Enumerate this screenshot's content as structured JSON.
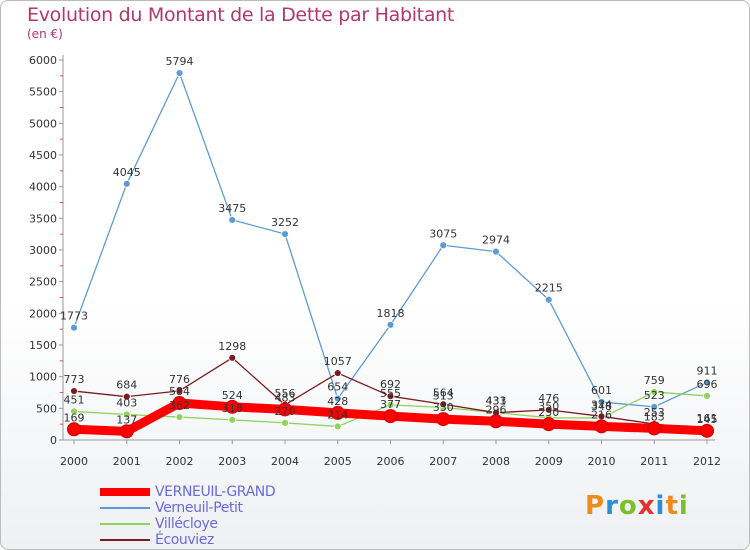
{
  "title": "Evolution du Montant de la Dette par Habitant",
  "subtitle": "(en €)",
  "logo": {
    "text": "Proxiti",
    "letter_colors": [
      "#f08a1c",
      "#2b8fd6",
      "#7cbf2a",
      "#e8302a",
      "#2b8fd6",
      "#f08a1c",
      "#7cbf2a"
    ]
  },
  "chart_data": {
    "type": "line",
    "x": [
      2000,
      2001,
      2002,
      2003,
      2004,
      2005,
      2006,
      2007,
      2008,
      2009,
      2010,
      2011,
      2012
    ],
    "ylim": [
      0,
      6000
    ],
    "yticks": [
      0,
      500,
      1000,
      1500,
      2000,
      2500,
      3000,
      3500,
      4000,
      4500,
      5000,
      5500,
      6000
    ],
    "grid": false,
    "legend_position": "bottom-left",
    "series": [
      {
        "name": "VERNEUIL-GRAND",
        "color": "#ff0000",
        "values": [
          169,
          137,
          584,
          524,
          483,
          428,
          377,
          330,
          296,
          250,
          216,
          183,
          145
        ],
        "labels": [
          "169",
          "137",
          "584",
          "524",
          "483",
          "428",
          "377",
          "330",
          "296",
          "250",
          "216",
          "183",
          "145"
        ]
      },
      {
        "name": "Verneuil-Petit",
        "color": "#5f9bd3",
        "values": [
          1773,
          4045,
          5794,
          3475,
          3252,
          654,
          1818,
          3075,
          2974,
          2215,
          601,
          523,
          911
        ],
        "labels": [
          "1773",
          "4045",
          "5794",
          "3475",
          "3252",
          "654",
          "1818",
          "3075",
          "2974",
          "2215",
          "601",
          "523",
          "911"
        ]
      },
      {
        "name": "Villécloye",
        "color": "#8fd35c",
        "values": [
          451,
          403,
          362,
          318,
          270,
          214,
          555,
          513,
          433,
          350,
          348,
          759,
          696
        ],
        "labels": [
          "451",
          "403",
          "362",
          "318",
          "270",
          "214",
          "555",
          "513",
          "433",
          "350",
          "348",
          "759",
          "696"
        ]
      },
      {
        "name": "Écouviez",
        "color": "#7a1e1e",
        "values": [
          773,
          684,
          776,
          1298,
          556,
          1057,
          692,
          564,
          431,
          476,
          374,
          253,
          161
        ],
        "labels": [
          "773",
          "684",
          "776",
          "1298",
          "556",
          "1057",
          "692",
          "564",
          "431",
          "476",
          "374",
          "253",
          "161"
        ]
      }
    ]
  }
}
